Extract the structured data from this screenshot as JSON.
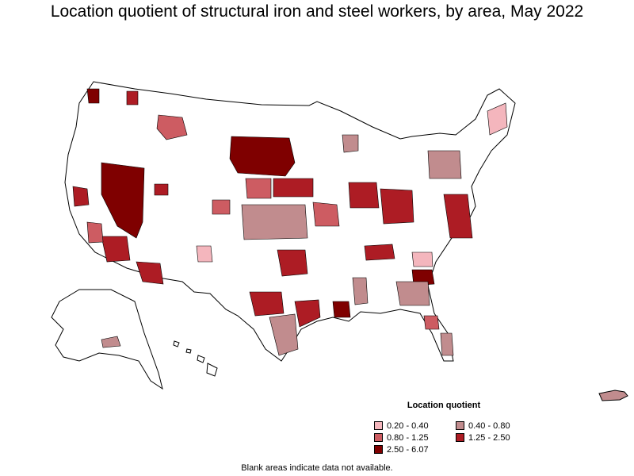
{
  "title": "Location quotient of structural iron and steel workers, by area, May 2022",
  "legend": {
    "title": "Location quotient",
    "items": [
      {
        "label": "0.20 - 0.40",
        "color": "#f4b6bd"
      },
      {
        "label": "0.40 - 0.80",
        "color": "#c18c8e"
      },
      {
        "label": "0.80 - 1.25",
        "color": "#cd5c62"
      },
      {
        "label": "1.25 - 2.50",
        "color": "#ad1c24"
      },
      {
        "label": "2.50 - 6.07",
        "color": "#7f0000"
      }
    ]
  },
  "note": "Blank areas indicate data not available.",
  "colors": {
    "outline": "#000000",
    "no_data": "#ffffff"
  }
}
